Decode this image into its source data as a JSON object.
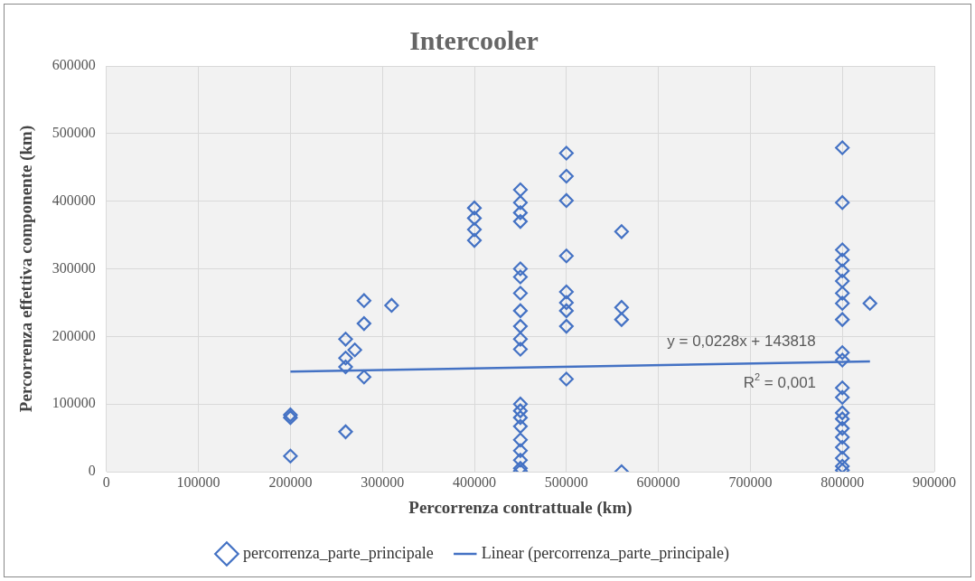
{
  "chart_data": {
    "type": "scatter",
    "title": "Intercooler",
    "xlabel": "Percorrenza contrattuale (km)",
    "ylabel": "Percorrenza effettiva componente (km)",
    "xlim": [
      0,
      900000
    ],
    "xticks": [
      0,
      100000,
      200000,
      300000,
      400000,
      500000,
      600000,
      700000,
      800000,
      900000
    ],
    "ylim": [
      0,
      600000
    ],
    "yticks": [
      0,
      100000,
      200000,
      300000,
      400000,
      500000,
      600000
    ],
    "grid": true,
    "legend": "bottom",
    "marker": "diamond",
    "series": [
      {
        "name": "percorrenza_parte_principale",
        "color": "#4472c4",
        "x": [
          200000,
          200000,
          200000,
          260000,
          260000,
          260000,
          260000,
          270000,
          280000,
          280000,
          280000,
          310000,
          400000,
          400000,
          400000,
          400000,
          450000,
          450000,
          450000,
          450000,
          450000,
          450000,
          450000,
          450000,
          450000,
          450000,
          450000,
          450000,
          450000,
          450000,
          450000,
          450000,
          450000,
          450000,
          450000,
          450000,
          500000,
          500000,
          500000,
          500000,
          500000,
          500000,
          500000,
          500000,
          500000,
          560000,
          560000,
          560000,
          560000,
          800000,
          800000,
          800000,
          800000,
          800000,
          800000,
          800000,
          800000,
          800000,
          800000,
          800000,
          800000,
          800000,
          800000,
          800000,
          800000,
          800000,
          800000,
          800000,
          800000,
          800000,
          830000
        ],
        "values": [
          80000,
          84000,
          23000,
          196000,
          168000,
          155000,
          59000,
          180000,
          253000,
          219000,
          140000,
          246000,
          390000,
          375000,
          358000,
          342000,
          417000,
          398000,
          383000,
          370000,
          300000,
          288000,
          264000,
          238000,
          215000,
          196000,
          181000,
          100000,
          90000,
          80000,
          67000,
          47000,
          31000,
          17000,
          5000,
          1000,
          471000,
          437000,
          401000,
          319000,
          266000,
          250000,
          238000,
          215000,
          137000,
          355000,
          243000,
          225000,
          0,
          479000,
          398000,
          328000,
          313000,
          297000,
          282000,
          264000,
          249000,
          225000,
          176000,
          165000,
          124000,
          110000,
          87000,
          78000,
          64000,
          51000,
          36000,
          20000,
          8000,
          2000,
          249000
        ]
      },
      {
        "name": "Linear (percorrenza_parte_principale)",
        "color": "#4472c4",
        "type": "line",
        "line_style": "solid",
        "marker": "none",
        "x": [
          200000,
          830000
        ],
        "values": [
          148000,
          163000
        ]
      }
    ],
    "annotations": [
      "y = 0,0228x + 143818",
      "R$^{2}$ = 0,001"
    ]
  }
}
